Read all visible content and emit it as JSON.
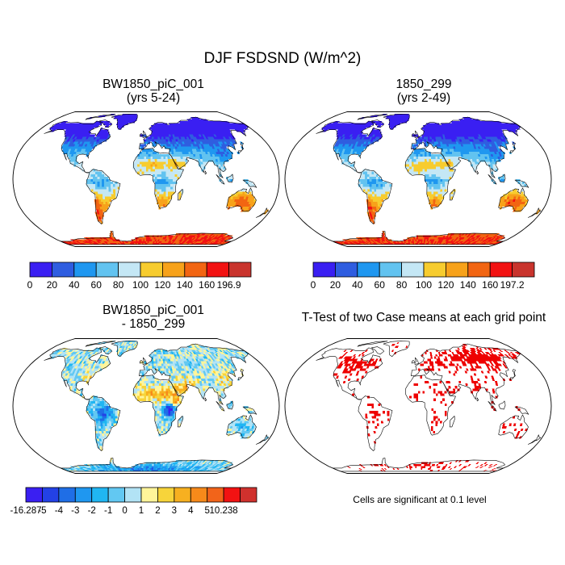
{
  "figure": {
    "title": "DJF FSDSND (W/m^2)"
  },
  "panels": [
    {
      "id": "case1",
      "title": "BW1850_piC_001",
      "subtitle": "(yrs 5-24)"
    },
    {
      "id": "case2",
      "title": "1850_299",
      "subtitle": "(yrs 2-49)"
    },
    {
      "id": "diff",
      "title": "BW1850_piC_001",
      "subtitle": "- 1850_299"
    },
    {
      "id": "ttest",
      "title": "T-Test of two Case means at each grid point",
      "subtitle": ""
    }
  ],
  "ttest_note": "Cells are significant at 0.1 level",
  "colors": {
    "seq": [
      "#3a1ff2",
      "#2f5de0",
      "#1f97f0",
      "#62c3f0",
      "#c4e7f5",
      "#f7cc2e",
      "#f7a21a",
      "#f26512",
      "#f21212",
      "#c9342d"
    ],
    "div": [
      "#3a1ff2",
      "#2341e6",
      "#1f6ee6",
      "#1f97f0",
      "#20b6f2",
      "#62c8f2",
      "#b2e3f5",
      "#fff59a",
      "#f7d43a",
      "#f7b020",
      "#f78a1a",
      "#f2641a",
      "#f21212",
      "#d0312d"
    ],
    "sig": "#ee0000",
    "coast": "#000000"
  },
  "chart_data": [
    {
      "type": "heatmap",
      "panel": "case1",
      "title": "BW1850_piC_001 (yrs 5-24)",
      "projection": "Robinson",
      "variable": "FSDSND",
      "units": "W/m^2",
      "season": "DJF",
      "colorbar": {
        "levels": [
          0,
          20,
          40,
          60,
          80,
          100,
          120,
          140,
          160,
          196.9
        ],
        "tick_labels": [
          "0",
          "20",
          "40",
          "60",
          "80",
          "100",
          "120",
          "140",
          "160",
          "196.9"
        ]
      },
      "approx_values_by_latitude": {
        "lat_85": 0,
        "lat_60": 10,
        "lat_45": 40,
        "lat_30": 70,
        "lat_15": 95,
        "lat_0": 75,
        "lat_-15": 85,
        "lat_-30": 115,
        "lat_-45": 150,
        "lat_-75": 170
      }
    },
    {
      "type": "heatmap",
      "panel": "case2",
      "title": "1850_299 (yrs 2-49)",
      "projection": "Robinson",
      "variable": "FSDSND",
      "units": "W/m^2",
      "season": "DJF",
      "colorbar": {
        "levels": [
          0,
          20,
          40,
          60,
          80,
          100,
          120,
          140,
          160,
          197.2
        ],
        "tick_labels": [
          "0",
          "20",
          "40",
          "60",
          "80",
          "100",
          "120",
          "140",
          "160",
          "197.2"
        ]
      },
      "approx_values_by_latitude": {
        "lat_85": 0,
        "lat_60": 10,
        "lat_45": 40,
        "lat_30": 70,
        "lat_15": 95,
        "lat_0": 75,
        "lat_-15": 85,
        "lat_-30": 115,
        "lat_-45": 150,
        "lat_-75": 170
      }
    },
    {
      "type": "heatmap",
      "panel": "diff",
      "title": "BW1850_piC_001 - 1850_299",
      "projection": "Robinson",
      "units": "W/m^2",
      "colorbar": {
        "levels": [
          -16.287,
          -5,
          -4,
          -3,
          -2,
          -1,
          0,
          1,
          2,
          3,
          4,
          5,
          10.238
        ],
        "tick_labels": [
          "-16.287",
          "-5",
          "-4",
          "-3",
          "-2",
          "-1",
          "0",
          "1",
          "2",
          "3",
          "4",
          "5",
          "10.238"
        ]
      },
      "notable_regions": {
        "north_africa_sahel": 3,
        "east_africa": -5,
        "amazon": -3,
        "antarctica": -3,
        "eurasia": 0.5
      }
    },
    {
      "type": "heatmap",
      "panel": "ttest",
      "title": "T-Test of two Case means at each grid point",
      "projection": "Robinson",
      "significance_level": 0.1,
      "note": "Cells are significant at 0.1 level",
      "significant_regions": [
        "Siberia",
        "North America (east)",
        "Canada",
        "Europe",
        "Sahel",
        "India",
        "southern Africa",
        "South America (patches)",
        "Antarctica coast"
      ]
    }
  ]
}
